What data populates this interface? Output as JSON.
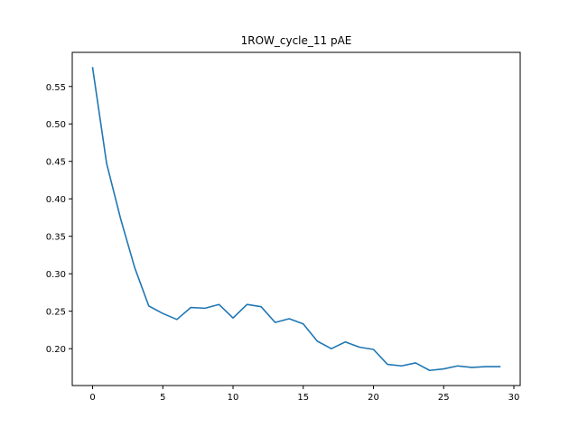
{
  "chart_data": {
    "type": "line",
    "title": "1ROW_cycle_11 pAE",
    "xlabel": "",
    "ylabel": "",
    "xlim": [
      -1.45,
      30.45
    ],
    "ylim": [
      0.1508,
      0.5955
    ],
    "xticks": [
      0,
      5,
      10,
      15,
      20,
      25,
      30
    ],
    "yticks": [
      0.2,
      0.25,
      0.3,
      0.35,
      0.4,
      0.45,
      0.5,
      0.55
    ],
    "ytick_labels": [
      "0.20",
      "0.25",
      "0.30",
      "0.35",
      "0.40",
      "0.45",
      "0.50",
      "0.55"
    ],
    "grid": false,
    "legend": "none",
    "series": [
      {
        "color": "#1f77b4",
        "x": [
          0,
          1,
          2,
          3,
          4,
          5,
          6,
          7,
          8,
          9,
          10,
          11,
          12,
          13,
          14,
          15,
          16,
          17,
          18,
          19,
          20,
          21,
          22,
          23,
          24,
          25,
          26,
          27,
          28,
          29
        ],
        "y": [
          0.575,
          0.447,
          0.373,
          0.308,
          0.257,
          0.247,
          0.239,
          0.255,
          0.254,
          0.259,
          0.241,
          0.259,
          0.256,
          0.235,
          0.24,
          0.233,
          0.21,
          0.2,
          0.209,
          0.202,
          0.199,
          0.179,
          0.177,
          0.181,
          0.171,
          0.173,
          0.177,
          0.175,
          0.176,
          0.176
        ]
      }
    ]
  }
}
